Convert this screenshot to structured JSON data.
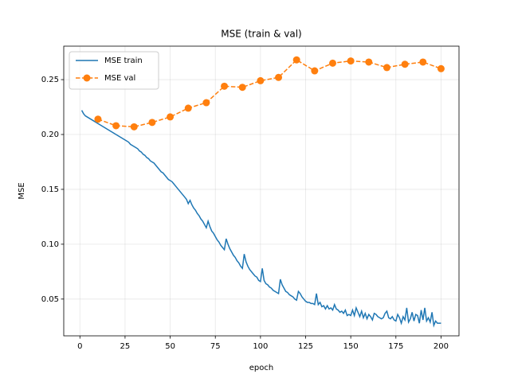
{
  "chart_data": {
    "type": "line",
    "title": "MSE (train & val)",
    "x_label": "epoch",
    "y_label": "MSE",
    "xlim": [
      -8.95,
      209.95
    ],
    "ylim": [
      0.0165,
      0.2805
    ],
    "xticks": [
      0,
      25,
      50,
      75,
      100,
      125,
      150,
      175,
      200
    ],
    "yticks": [
      0.05,
      {
        "value": 0.1,
        "label": "0.10"
      },
      0.15,
      {
        "value": 0.2,
        "label": "0.20"
      },
      0.25
    ],
    "grid": true,
    "legend": "upper left",
    "series": [
      {
        "name": "MSE train",
        "color": "#1f77b4",
        "marker": false,
        "dashed": false,
        "x": [
          1,
          2,
          3,
          4,
          5,
          6,
          7,
          8,
          9,
          10,
          11,
          12,
          13,
          14,
          15,
          16,
          17,
          18,
          19,
          20,
          21,
          22,
          23,
          24,
          25,
          26,
          27,
          28,
          29,
          30,
          31,
          32,
          33,
          34,
          35,
          36,
          37,
          38,
          39,
          40,
          41,
          42,
          43,
          44,
          45,
          46,
          47,
          48,
          49,
          50,
          51,
          52,
          53,
          54,
          55,
          56,
          57,
          58,
          59,
          60,
          61,
          62,
          63,
          64,
          65,
          66,
          67,
          68,
          69,
          70,
          71,
          72,
          73,
          74,
          75,
          76,
          77,
          78,
          79,
          80,
          81,
          82,
          83,
          84,
          85,
          86,
          87,
          88,
          89,
          90,
          91,
          92,
          93,
          94,
          95,
          96,
          97,
          98,
          99,
          100,
          101,
          102,
          103,
          104,
          105,
          106,
          107,
          108,
          109,
          110,
          111,
          112,
          113,
          114,
          115,
          116,
          117,
          118,
          119,
          120,
          121,
          122,
          123,
          124,
          125,
          126,
          127,
          128,
          129,
          130,
          131,
          132,
          133,
          134,
          135,
          136,
          137,
          138,
          139,
          140,
          141,
          142,
          143,
          144,
          145,
          146,
          147,
          148,
          149,
          150,
          151,
          152,
          153,
          154,
          155,
          156,
          157,
          158,
          159,
          160,
          161,
          162,
          163,
          164,
          165,
          166,
          167,
          168,
          169,
          170,
          171,
          172,
          173,
          174,
          175,
          176,
          177,
          178,
          179,
          180,
          181,
          182,
          183,
          184,
          185,
          186,
          187,
          188,
          189,
          190,
          191,
          192,
          193,
          194,
          195,
          196,
          197,
          198,
          199,
          200
        ],
        "values": [
          0.222,
          0.219,
          0.217,
          0.216,
          0.215,
          0.214,
          0.213,
          0.212,
          0.211,
          0.21,
          0.209,
          0.208,
          0.207,
          0.206,
          0.205,
          0.204,
          0.203,
          0.202,
          0.201,
          0.2,
          0.199,
          0.198,
          0.197,
          0.196,
          0.195,
          0.194,
          0.193,
          0.191,
          0.19,
          0.189,
          0.188,
          0.187,
          0.185,
          0.184,
          0.182,
          0.181,
          0.179,
          0.178,
          0.176,
          0.175,
          0.174,
          0.172,
          0.17,
          0.168,
          0.166,
          0.165,
          0.163,
          0.161,
          0.159,
          0.158,
          0.157,
          0.155,
          0.153,
          0.151,
          0.149,
          0.147,
          0.145,
          0.143,
          0.141,
          0.137,
          0.14,
          0.136,
          0.133,
          0.131,
          0.128,
          0.126,
          0.123,
          0.121,
          0.118,
          0.115,
          0.121,
          0.116,
          0.112,
          0.11,
          0.107,
          0.104,
          0.102,
          0.099,
          0.097,
          0.095,
          0.105,
          0.1,
          0.096,
          0.093,
          0.09,
          0.088,
          0.085,
          0.083,
          0.08,
          0.078,
          0.091,
          0.084,
          0.08,
          0.077,
          0.075,
          0.073,
          0.071,
          0.07,
          0.067,
          0.066,
          0.078,
          0.067,
          0.064,
          0.063,
          0.061,
          0.06,
          0.058,
          0.057,
          0.056,
          0.055,
          0.068,
          0.063,
          0.06,
          0.057,
          0.056,
          0.054,
          0.053,
          0.052,
          0.05,
          0.049,
          0.057,
          0.055,
          0.052,
          0.05,
          0.048,
          0.047,
          0.047,
          0.046,
          0.046,
          0.045,
          0.055,
          0.045,
          0.047,
          0.043,
          0.044,
          0.041,
          0.044,
          0.041,
          0.042,
          0.04,
          0.045,
          0.041,
          0.04,
          0.038,
          0.039,
          0.037,
          0.04,
          0.035,
          0.036,
          0.035,
          0.04,
          0.035,
          0.042,
          0.038,
          0.034,
          0.039,
          0.033,
          0.037,
          0.032,
          0.036,
          0.034,
          0.031,
          0.037,
          0.036,
          0.034,
          0.033,
          0.032,
          0.033,
          0.037,
          0.039,
          0.033,
          0.032,
          0.034,
          0.031,
          0.03,
          0.036,
          0.033,
          0.028,
          0.034,
          0.031,
          0.042,
          0.029,
          0.032,
          0.038,
          0.03,
          0.036,
          0.035,
          0.028,
          0.04,
          0.031,
          0.042,
          0.03,
          0.033,
          0.029,
          0.038,
          0.026,
          0.03,
          0.028,
          0.028,
          0.028
        ]
      },
      {
        "name": "MSE val",
        "color": "#ff7f0e",
        "marker": true,
        "dashed": true,
        "x": [
          10,
          20,
          30,
          40,
          50,
          60,
          70,
          80,
          90,
          100,
          110,
          120,
          130,
          140,
          150,
          160,
          170,
          180,
          190,
          200
        ],
        "values": [
          0.214,
          0.208,
          0.207,
          0.211,
          0.216,
          0.224,
          0.229,
          0.244,
          0.243,
          0.249,
          0.252,
          0.268,
          0.258,
          0.265,
          0.267,
          0.266,
          0.261,
          0.264,
          0.266,
          0.26
        ]
      }
    ]
  }
}
